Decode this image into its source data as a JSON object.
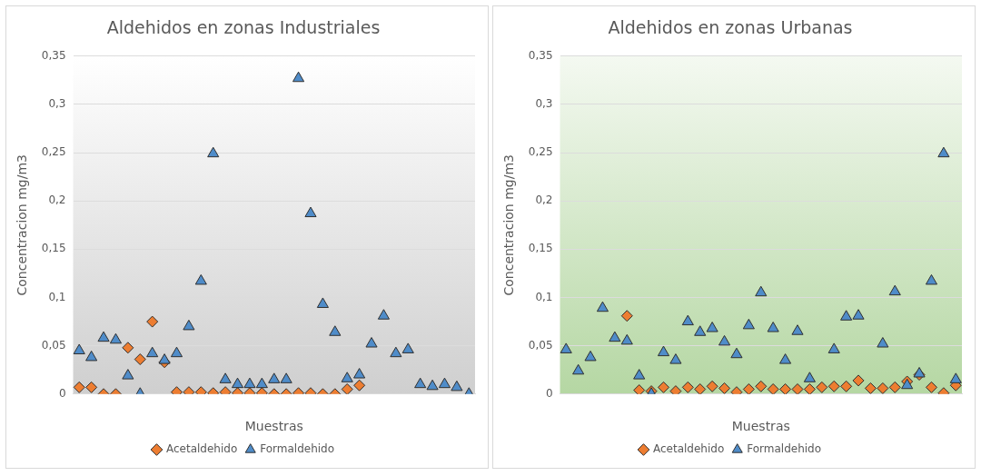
{
  "chart_data": [
    {
      "type": "scatter",
      "title": "Aldehidos en zonas Industriales",
      "xlabel": "Muestras",
      "ylabel": "Concentracion mg/m3",
      "categories": [
        null,
        null,
        null,
        null,
        null,
        null,
        null,
        null,
        null,
        null,
        null,
        null,
        null,
        null,
        null,
        null,
        null,
        null,
        null,
        null,
        null,
        null,
        null,
        null,
        null,
        null,
        null,
        null,
        null,
        null,
        null,
        null,
        null
      ],
      "series": [
        {
          "name": "Acetaldehido",
          "color": "#ed7d31",
          "marker": "diamond",
          "values": [
            0.007,
            0.007,
            0,
            0,
            0.048,
            0.036,
            0.075,
            0.033,
            0.002,
            0.002,
            0.002,
            0.001,
            0.002,
            0.001,
            0.001,
            0.001,
            0,
            0,
            0.001,
            0.001,
            0,
            0,
            0.005,
            0.009,
            null,
            null,
            null,
            null,
            null,
            null,
            null,
            null,
            null
          ]
        },
        {
          "name": "Formaldehido",
          "color": "#4f8cc9",
          "marker": "triangle",
          "values": [
            0.045,
            0.038,
            0.058,
            0.056,
            0.019,
            0,
            0.042,
            0.035,
            0.042,
            0.07,
            0.117,
            0.249,
            0.015,
            0.01,
            0.01,
            0.01,
            0.015,
            0.015,
            0.327,
            0.187,
            0.093,
            0.064,
            0.016,
            0.02,
            0.052,
            0.081,
            0.042,
            0.046,
            0.01,
            0.008,
            0.01,
            0.007,
            0
          ]
        }
      ],
      "ylim": [
        0,
        0.35
      ],
      "yticks": [
        0,
        {
          "value": 0.05,
          "label": "0,05"
        },
        {
          "value": 0.1,
          "label": "0,1"
        },
        {
          "value": 0.15,
          "label": "0,15"
        },
        {
          "value": 0.2,
          "label": "0,2"
        },
        {
          "value": 0.25,
          "label": "0,25"
        },
        {
          "value": 0.3,
          "label": "0,3"
        },
        {
          "value": 0.35,
          "label": "0,35"
        }
      ],
      "grid": "y",
      "legend": "bottom"
    },
    {
      "type": "scatter",
      "title": "Aldehidos en zonas Urbanas",
      "xlabel": "Muestras",
      "ylabel": "Concentracion mg/m3",
      "categories": [
        null,
        null,
        null,
        null,
        null,
        null,
        null,
        null,
        null,
        null,
        null,
        null,
        null,
        null,
        null,
        null,
        null,
        null,
        null,
        null,
        null,
        null,
        null,
        null,
        null,
        null,
        null,
        null,
        null,
        null,
        null,
        null,
        null
      ],
      "series": [
        {
          "name": "Acetaldehido",
          "color": "#ed7d31",
          "marker": "diamond",
          "values": [
            null,
            null,
            null,
            null,
            null,
            0.081,
            0.004,
            0.003,
            0.007,
            0.003,
            0.007,
            0.005,
            0.008,
            0.006,
            0.002,
            0.005,
            0.008,
            0.005,
            0.005,
            0.005,
            0.005,
            0.007,
            0.008,
            0.008,
            0.014,
            0.006,
            0.006,
            0.007,
            0.013,
            0.02,
            0.007,
            0.001,
            0.009
          ]
        },
        {
          "name": "Formaldehido",
          "color": "#4f8cc9",
          "marker": "triangle",
          "values": [
            0.046,
            0.024,
            0.038,
            0.089,
            0.058,
            0.055,
            0.019,
            0,
            0.043,
            0.035,
            0.075,
            0.064,
            0.068,
            0.054,
            0.041,
            0.071,
            0.105,
            0.068,
            0.035,
            0.065,
            0.016,
            null,
            0.046,
            0.08,
            0.081,
            null,
            0.052,
            0.106,
            0.009,
            0.021,
            0.117,
            0.249,
            0.015
          ]
        }
      ],
      "ylim": [
        0,
        0.35
      ],
      "yticks": [
        0,
        {
          "value": 0.05,
          "label": "0,05"
        },
        {
          "value": 0.1,
          "label": "0,1"
        },
        {
          "value": 0.15,
          "label": "0,15"
        },
        {
          "value": 0.2,
          "label": "0,2"
        },
        {
          "value": 0.25,
          "label": "0,25"
        },
        {
          "value": 0.3,
          "label": "0,3"
        },
        {
          "value": 0.35,
          "label": "0,35"
        }
      ],
      "grid": "y",
      "legend": "bottom"
    }
  ]
}
